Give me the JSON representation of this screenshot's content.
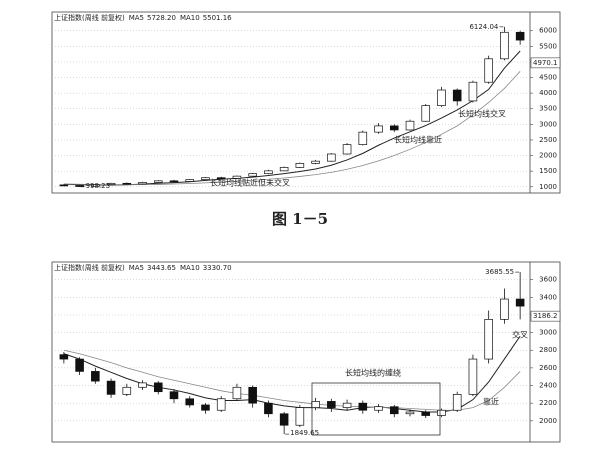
{
  "chart_data": [
    {
      "type": "candlestick",
      "title": "上证指数(周线 前复权)",
      "header_values": [
        {
          "name": "MA5",
          "value": 5728.2,
          "label": "5728.20"
        },
        {
          "name": "MA10",
          "value": 5501.16
        }
      ],
      "open": [
        1060,
        1040,
        1010,
        1070,
        1110,
        1090,
        1140,
        1190,
        1170,
        1230,
        1290,
        1270,
        1340,
        1420,
        1510,
        1620,
        1750,
        1820,
        2050,
        2350,
        2750,
        2950,
        2820,
        3100,
        3600,
        4100,
        3750,
        4350,
        5100,
        5950
      ],
      "close": [
        1040,
        1010,
        1070,
        1110,
        1090,
        1140,
        1190,
        1170,
        1230,
        1290,
        1270,
        1340,
        1420,
        1510,
        1620,
        1750,
        1820,
        2050,
        2350,
        2750,
        2950,
        2820,
        3100,
        3600,
        4100,
        3750,
        4350,
        5100,
        5950,
        5700
      ],
      "high": [
        1080,
        1050,
        1085,
        1130,
        1140,
        1160,
        1210,
        1220,
        1250,
        1310,
        1320,
        1360,
        1440,
        1540,
        1650,
        1780,
        1860,
        2080,
        2400,
        2800,
        3040,
        3000,
        3150,
        3650,
        4200,
        4150,
        4400,
        5200,
        6124.04,
        6000
      ],
      "low": [
        1020,
        998.23,
        1005,
        1060,
        1080,
        1085,
        1130,
        1150,
        1160,
        1220,
        1250,
        1260,
        1330,
        1400,
        1500,
        1600,
        1720,
        1800,
        2030,
        2320,
        2700,
        2750,
        2800,
        3080,
        3550,
        3600,
        3700,
        4300,
        5050,
        5550
      ],
      "series": [
        {
          "name": "MA5",
          "color": "#222",
          "values": [
            1080,
            1065,
            1055,
            1058,
            1066,
            1084,
            1112,
            1134,
            1162,
            1204,
            1240,
            1268,
            1310,
            1362,
            1420,
            1490,
            1570,
            1690,
            1860,
            2070,
            2330,
            2560,
            2760,
            2960,
            3200,
            3460,
            3760,
            4120,
            4800,
            5350
          ]
        },
        {
          "name": "MA10",
          "color": "#888",
          "values": [
            1090,
            1080,
            1072,
            1068,
            1066,
            1068,
            1075,
            1088,
            1105,
            1125,
            1150,
            1175,
            1205,
            1240,
            1280,
            1330,
            1390,
            1460,
            1560,
            1680,
            1830,
            2000,
            2200,
            2420,
            2680,
            2950,
            3300,
            3700,
            4150,
            4700
          ]
        }
      ],
      "high_label": 6124.04,
      "low_label": 998.23,
      "last_price": 4970.1,
      "annotations": [
        "长短均线交叉",
        "长短均线靠近",
        "长短均线贴近但未交叉"
      ],
      "ylim": [
        800,
        6600
      ],
      "yticks": [
        1000,
        1500,
        2000,
        2500,
        3000,
        3500,
        4000,
        4500,
        5000,
        5500,
        6000
      ],
      "grid": true,
      "caption": "图 1－5"
    },
    {
      "type": "candlestick",
      "title": "上证指数(周线 前复权)",
      "header_values": [
        {
          "name": "MA5",
          "value": 3443.65
        },
        {
          "name": "MA10",
          "value": 3330.7,
          "label": "3330.70"
        }
      ],
      "open": [
        2750,
        2700,
        2560,
        2450,
        2300,
        2380,
        2430,
        2330,
        2250,
        2180,
        2120,
        2250,
        2380,
        2200,
        2080,
        1950,
        2150,
        2220,
        2150,
        2200,
        2120,
        2160,
        2080,
        2100,
        2060,
        2120,
        2300,
        2700,
        3150,
        3380
      ],
      "close": [
        2700,
        2560,
        2450,
        2300,
        2380,
        2430,
        2330,
        2250,
        2180,
        2120,
        2250,
        2380,
        2200,
        2080,
        1950,
        2150,
        2220,
        2150,
        2200,
        2120,
        2160,
        2080,
        2100,
        2060,
        2120,
        2300,
        2700,
        3150,
        3380,
        3300
      ],
      "high": [
        2780,
        2720,
        2600,
        2480,
        2420,
        2460,
        2450,
        2360,
        2280,
        2200,
        2280,
        2420,
        2400,
        2230,
        2100,
        2180,
        2260,
        2250,
        2240,
        2230,
        2190,
        2180,
        2130,
        2120,
        2140,
        2330,
        2750,
        3250,
        3500,
        3685.55
      ],
      "low": [
        2650,
        2520,
        2420,
        2260,
        2280,
        2350,
        2300,
        2200,
        2150,
        2080,
        2100,
        2230,
        2150,
        2040,
        1849.65,
        1930,
        2120,
        2100,
        2120,
        2080,
        2090,
        2040,
        2050,
        2030,
        2040,
        2100,
        2280,
        2650,
        3100,
        3150
      ],
      "series": [
        {
          "name": "MA5",
          "color": "#222",
          "values": [
            2760,
            2700,
            2620,
            2550,
            2480,
            2420,
            2380,
            2350,
            2310,
            2260,
            2230,
            2230,
            2240,
            2200,
            2170,
            2150,
            2150,
            2140,
            2120,
            2150,
            2160,
            2140,
            2120,
            2100,
            2100,
            2130,
            2240,
            2440,
            2700,
            2960
          ]
        },
        {
          "name": "MA10",
          "color": "#888",
          "values": [
            2800,
            2760,
            2710,
            2660,
            2600,
            2550,
            2500,
            2460,
            2420,
            2380,
            2340,
            2310,
            2290,
            2260,
            2230,
            2210,
            2190,
            2175,
            2165,
            2160,
            2155,
            2150,
            2140,
            2130,
            2120,
            2120,
            2150,
            2230,
            2380,
            2560
          ]
        }
      ],
      "high_label": 3685.55,
      "low_label": 1849.65,
      "last_price": 3186.2,
      "annotations": [
        "长短均线的缠绕",
        "靠近",
        "交叉"
      ],
      "ylim": [
        1760,
        3800
      ],
      "yticks": [
        2000,
        2200,
        2400,
        2600,
        2800,
        3000,
        3200,
        3400,
        3600
      ],
      "grid": true
    }
  ]
}
